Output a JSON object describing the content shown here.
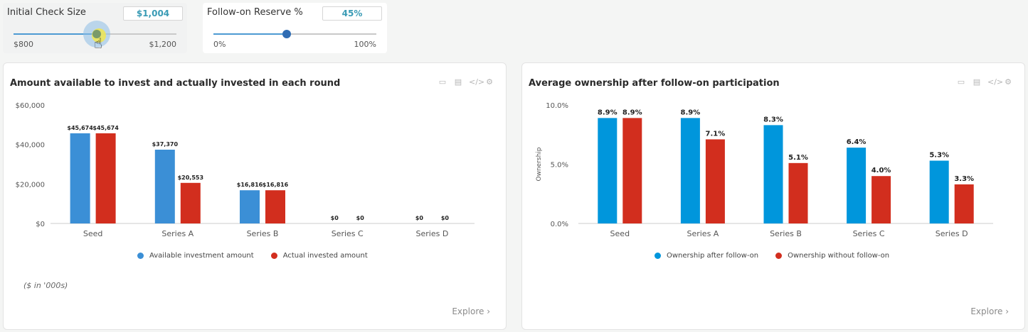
{
  "sliders": {
    "check_size": {
      "label": "Initial Check Size",
      "value": "$1,004",
      "min_label": "$800",
      "max_label": "$1,200",
      "fraction": 0.51
    },
    "reserve": {
      "label": "Follow-on Reserve %",
      "value": "45%",
      "min_label": "0%",
      "max_label": "100%",
      "fraction": 0.45
    }
  },
  "panels": {
    "left": {
      "title": "Amount available to invest and actually invested in each round",
      "note": "($ in '000s)",
      "explore": "Explore ›",
      "tools": [
        "save-icon",
        "database-icon",
        "code-icon",
        "gear-icon"
      ]
    },
    "right": {
      "title": "Average ownership after follow-on participation",
      "explore": "Explore ›",
      "tools": [
        "save-icon",
        "database-icon",
        "code-icon",
        "gear-icon"
      ]
    }
  },
  "colors": {
    "blue_left": "#3b8fd6",
    "blue_right": "#0096dc",
    "red": "#d22e1e",
    "slider_thumb_1": "#7a9a6a",
    "slider_thumb_2": "#2f6cb3"
  },
  "chart_data": [
    {
      "type": "bar",
      "categories": [
        "Seed",
        "Series A",
        "Series B",
        "Series C",
        "Series D"
      ],
      "series": [
        {
          "name": "Available investment amount",
          "values": [
            45674,
            37370,
            16816,
            0,
            0
          ],
          "labels": [
            "$45,674",
            "$37,370",
            "$16,816",
            "$0",
            "$0"
          ]
        },
        {
          "name": "Actual invested amount",
          "values": [
            45674,
            20553,
            16816,
            0,
            0
          ],
          "labels": [
            "$45,674",
            "$20,553",
            "$16,816",
            "$0",
            "$0"
          ]
        }
      ],
      "yticks": [
        "$0",
        "$20,000",
        "$40,000",
        "$60,000"
      ],
      "ytick_values": [
        0,
        20000,
        40000,
        60000
      ],
      "ylim": [
        0,
        60000
      ],
      "xlabel": "",
      "ylabel": "",
      "legend": "bottom"
    },
    {
      "type": "bar",
      "categories": [
        "Seed",
        "Series A",
        "Series B",
        "Series C",
        "Series D"
      ],
      "series": [
        {
          "name": "Ownership after follow-on",
          "values": [
            8.9,
            8.9,
            8.3,
            6.4,
            5.3
          ],
          "labels": [
            "8.9%",
            "8.9%",
            "8.3%",
            "6.4%",
            "5.3%"
          ]
        },
        {
          "name": "Ownership without follow-on",
          "values": [
            8.9,
            7.1,
            5.1,
            4.0,
            3.3
          ],
          "labels": [
            "8.9%",
            "7.1%",
            "5.1%",
            "4.0%",
            "3.3%"
          ]
        }
      ],
      "yticks": [
        "0.0%",
        "5.0%",
        "10.0%"
      ],
      "ytick_values": [
        0,
        5,
        10
      ],
      "ylim": [
        0,
        10
      ],
      "xlabel": "",
      "ylabel": "Ownership",
      "legend": "bottom"
    }
  ]
}
